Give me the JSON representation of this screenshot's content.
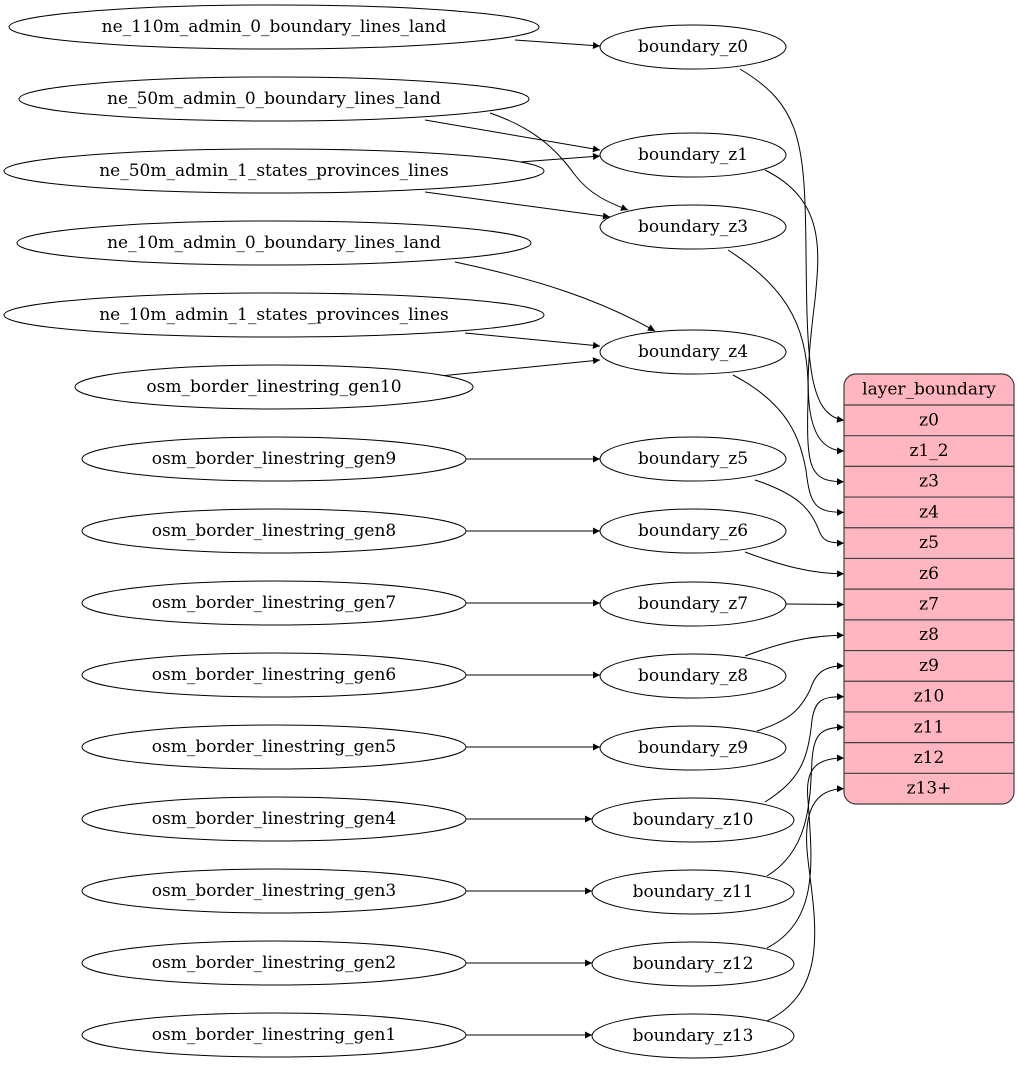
{
  "sources": [
    "ne_110m_admin_0_boundary_lines_land",
    "ne_50m_admin_0_boundary_lines_land",
    "ne_50m_admin_1_states_provinces_lines",
    "ne_10m_admin_0_boundary_lines_land",
    "ne_10m_admin_1_states_provinces_lines",
    "osm_border_linestring_gen10",
    "osm_border_linestring_gen9",
    "osm_border_linestring_gen8",
    "osm_border_linestring_gen7",
    "osm_border_linestring_gen6",
    "osm_border_linestring_gen5",
    "osm_border_linestring_gen4",
    "osm_border_linestring_gen3",
    "osm_border_linestring_gen2",
    "osm_border_linestring_gen1"
  ],
  "intermediates": [
    "boundary_z0",
    "boundary_z1",
    "boundary_z3",
    "boundary_z4",
    "boundary_z5",
    "boundary_z6",
    "boundary_z7",
    "boundary_z8",
    "boundary_z9",
    "boundary_z10",
    "boundary_z11",
    "boundary_z12",
    "boundary_z13"
  ],
  "record": {
    "title": "layer_boundary",
    "fields": [
      "z0",
      "z1_2",
      "z3",
      "z4",
      "z5",
      "z6",
      "z7",
      "z8",
      "z9",
      "z10",
      "z11",
      "z12",
      "z13+"
    ],
    "fill_color": "#ffb6c1"
  },
  "edges_to_intermediate": [
    [
      "ne_110m_admin_0_boundary_lines_land",
      "boundary_z0"
    ],
    [
      "ne_50m_admin_0_boundary_lines_land",
      "boundary_z1"
    ],
    [
      "ne_50m_admin_0_boundary_lines_land",
      "boundary_z3"
    ],
    [
      "ne_50m_admin_1_states_provinces_lines",
      "boundary_z1"
    ],
    [
      "ne_50m_admin_1_states_provinces_lines",
      "boundary_z3"
    ],
    [
      "ne_10m_admin_0_boundary_lines_land",
      "boundary_z4"
    ],
    [
      "ne_10m_admin_1_states_provinces_lines",
      "boundary_z4"
    ],
    [
      "osm_border_linestring_gen10",
      "boundary_z4"
    ],
    [
      "osm_border_linestring_gen9",
      "boundary_z5"
    ],
    [
      "osm_border_linestring_gen8",
      "boundary_z6"
    ],
    [
      "osm_border_linestring_gen7",
      "boundary_z7"
    ],
    [
      "osm_border_linestring_gen6",
      "boundary_z8"
    ],
    [
      "osm_border_linestring_gen5",
      "boundary_z9"
    ],
    [
      "osm_border_linestring_gen4",
      "boundary_z10"
    ],
    [
      "osm_border_linestring_gen3",
      "boundary_z11"
    ],
    [
      "osm_border_linestring_gen2",
      "boundary_z12"
    ],
    [
      "osm_border_linestring_gen1",
      "boundary_z13"
    ]
  ],
  "edges_to_record": [
    [
      "boundary_z0",
      "z0"
    ],
    [
      "boundary_z1",
      "z1_2"
    ],
    [
      "boundary_z3",
      "z3"
    ],
    [
      "boundary_z4",
      "z4"
    ],
    [
      "boundary_z5",
      "z5"
    ],
    [
      "boundary_z6",
      "z6"
    ],
    [
      "boundary_z7",
      "z7"
    ],
    [
      "boundary_z8",
      "z8"
    ],
    [
      "boundary_z9",
      "z9"
    ],
    [
      "boundary_z10",
      "z10"
    ],
    [
      "boundary_z11",
      "z11"
    ],
    [
      "boundary_z12",
      "z12"
    ],
    [
      "boundary_z13",
      "z13+"
    ]
  ]
}
